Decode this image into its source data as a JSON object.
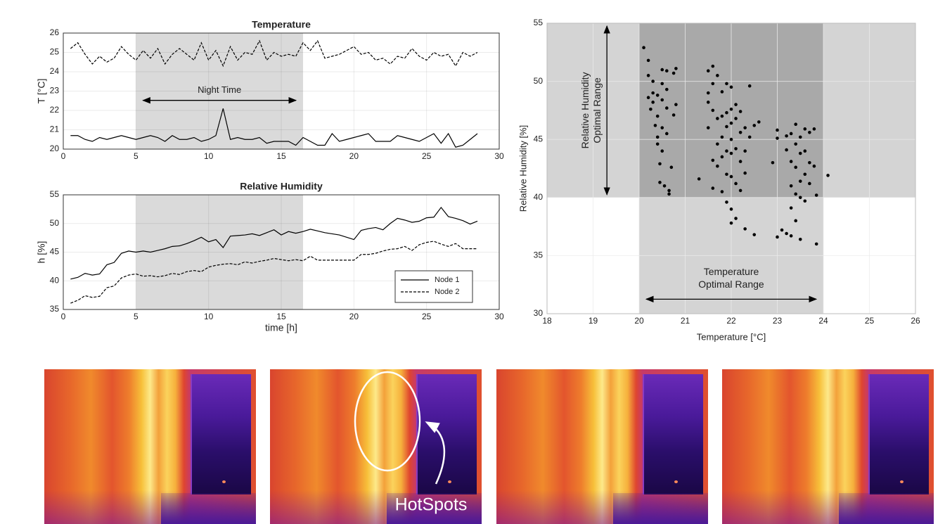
{
  "chart_data": [
    {
      "type": "line",
      "title": "Temperature",
      "ylabel": "T [°C]",
      "annotation": "Night Time",
      "shade": [
        5,
        16.5
      ],
      "shade_color": "#dadada",
      "grid": true,
      "xlim": [
        0,
        30
      ],
      "xticks": [
        0,
        5,
        10,
        15,
        20,
        25,
        30
      ],
      "ylim": [
        20,
        26
      ],
      "yticks": [
        20,
        21,
        22,
        23,
        24,
        25,
        26
      ],
      "x": [
        0.5,
        1,
        1.5,
        2,
        2.5,
        3,
        3.5,
        4,
        4.5,
        5,
        5.5,
        6,
        6.5,
        7,
        7.5,
        8,
        8.5,
        9,
        9.5,
        10,
        10.5,
        11,
        11.5,
        12,
        12.5,
        13,
        13.5,
        14,
        14.5,
        15,
        15.5,
        16,
        16.5,
        17,
        17.5,
        18,
        18.5,
        19,
        19.5,
        20,
        20.5,
        21,
        21.5,
        22,
        22.5,
        23,
        23.5,
        24,
        24.5,
        25,
        25.5,
        26,
        26.5,
        27,
        27.5,
        28,
        28.5
      ],
      "series": [
        {
          "name": "Node 1",
          "color": "#000000",
          "line_style": "solid",
          "values": [
            20.7,
            20.7,
            20.5,
            20.4,
            20.6,
            20.5,
            20.6,
            20.7,
            20.6,
            20.5,
            20.6,
            20.7,
            20.6,
            20.4,
            20.7,
            20.5,
            20.5,
            20.6,
            20.4,
            20.5,
            20.7,
            22.1,
            20.5,
            20.6,
            20.5,
            20.5,
            20.6,
            20.3,
            20.4,
            20.4,
            20.4,
            20.2,
            20.6,
            20.4,
            20.2,
            20.2,
            20.8,
            20.4,
            20.5,
            20.6,
            20.7,
            20.8,
            20.4,
            20.4,
            20.4,
            20.7,
            20.6,
            20.5,
            20.4,
            20.6,
            20.8,
            20.3,
            20.8,
            20.1,
            20.2,
            20.5,
            20.8
          ]
        },
        {
          "name": "Node 2",
          "color": "#000000",
          "line_style": "dashed",
          "values": [
            25.2,
            25.5,
            24.9,
            24.4,
            24.8,
            24.5,
            24.7,
            25.3,
            24.9,
            24.6,
            25.1,
            24.7,
            25.2,
            24.4,
            24.9,
            25.2,
            24.9,
            24.6,
            25.5,
            24.6,
            25.1,
            24.3,
            25.3,
            24.6,
            25.0,
            24.9,
            25.6,
            24.6,
            25.0,
            24.8,
            24.9,
            24.8,
            25.5,
            25.1,
            25.6,
            24.7,
            24.8,
            24.9,
            25.1,
            25.3,
            24.9,
            25.0,
            24.6,
            24.7,
            24.4,
            24.8,
            24.7,
            25.2,
            24.8,
            24.6,
            25.0,
            24.8,
            24.9,
            24.3,
            25.0,
            24.8,
            25.0
          ]
        }
      ]
    },
    {
      "type": "line",
      "title": "Relative Humidity",
      "ylabel": "h [%]",
      "xlabel": "time [h]",
      "shade": [
        5,
        16.5
      ],
      "shade_color": "#dadada",
      "grid": true,
      "legend": "lower right",
      "xlim": [
        0,
        30
      ],
      "xticks": [
        0,
        5,
        10,
        15,
        20,
        25,
        30
      ],
      "ylim": [
        35,
        55
      ],
      "yticks": [
        35,
        40,
        45,
        50,
        55
      ],
      "x": [
        0.5,
        1,
        1.5,
        2,
        2.5,
        3,
        3.5,
        4,
        4.5,
        5,
        5.5,
        6,
        6.5,
        7,
        7.5,
        8,
        8.5,
        9,
        9.5,
        10,
        10.5,
        11,
        11.5,
        12,
        12.5,
        13,
        13.5,
        14,
        14.5,
        15,
        15.5,
        16,
        16.5,
        17,
        17.5,
        18,
        18.5,
        19,
        19.5,
        20,
        20.5,
        21,
        21.5,
        22,
        22.5,
        23,
        23.5,
        24,
        24.5,
        25,
        25.5,
        26,
        26.5,
        27,
        27.5,
        28,
        28.5
      ],
      "series": [
        {
          "name": "Node 1",
          "color": "#000000",
          "line_style": "solid",
          "values": [
            40.3,
            40.6,
            41.3,
            41.0,
            41.2,
            42.8,
            43.2,
            44.8,
            45.2,
            45.0,
            45.2,
            45.0,
            45.3,
            45.6,
            46.0,
            46.1,
            46.5,
            47.0,
            47.6,
            46.8,
            47.2,
            45.8,
            47.8,
            47.9,
            48.0,
            48.2,
            47.9,
            48.4,
            48.9,
            48.0,
            48.6,
            48.3,
            48.6,
            49.0,
            48.7,
            48.4,
            48.2,
            48.0,
            47.6,
            47.2,
            48.8,
            49.1,
            49.3,
            48.9,
            50.0,
            50.9,
            50.6,
            50.2,
            50.4,
            51.0,
            51.1,
            52.8,
            51.2,
            50.9,
            50.5,
            49.9,
            50.4
          ]
        },
        {
          "name": "Node 2",
          "color": "#000000",
          "line_style": "dashed",
          "values": [
            36.1,
            36.6,
            37.4,
            37.1,
            37.3,
            38.8,
            39.1,
            40.5,
            41.0,
            41.2,
            40.8,
            40.9,
            40.7,
            40.9,
            41.3,
            41.1,
            41.6,
            41.8,
            41.6,
            42.4,
            42.7,
            42.9,
            43.0,
            42.8,
            43.3,
            43.1,
            43.4,
            43.6,
            43.9,
            43.7,
            43.5,
            43.7,
            43.5,
            44.3,
            43.6,
            43.6,
            43.6,
            43.6,
            43.6,
            43.6,
            44.6,
            44.6,
            44.8,
            45.2,
            45.5,
            45.6,
            46.0,
            45.3,
            46.3,
            46.7,
            46.9,
            46.4,
            46.0,
            46.5,
            45.6,
            45.6,
            45.6
          ]
        }
      ]
    },
    {
      "type": "scatter",
      "xlabel": "Temperature [°C]",
      "ylabel": "Relative Humidity [%]",
      "grid": true,
      "xlim": [
        18,
        26
      ],
      "xticks": [
        18,
        19,
        20,
        21,
        22,
        23,
        24,
        25,
        26
      ],
      "ylim": [
        30,
        55
      ],
      "yticks": [
        30,
        35,
        40,
        45,
        50,
        55
      ],
      "temp_range": [
        20,
        24
      ],
      "humidity_range": [
        40,
        55
      ],
      "region_color": "#d4d4d4",
      "overlap_color": "#a9a9a9",
      "temp_range_label": [
        "Temperature",
        "Optimal Range"
      ],
      "humidity_range_label": [
        "Relative Humidity",
        "Optimal Range"
      ],
      "color": "#000000",
      "x": [
        20.1,
        20.2,
        20.2,
        20.3,
        20.2,
        20.3,
        20.25,
        20.4,
        20.35,
        20.4,
        20.4,
        20.5,
        20.5,
        20.5,
        20.5,
        20.5,
        20.45,
        20.45,
        20.55,
        20.6,
        20.6,
        20.6,
        20.6,
        20.65,
        20.65,
        20.7,
        20.75,
        20.8,
        20.8,
        20.75,
        20.4,
        20.3,
        21.3,
        21.5,
        21.5,
        21.5,
        21.6,
        21.6,
        21.6,
        21.6,
        21.6,
        21.7,
        21.7,
        21.7,
        21.7,
        21.8,
        21.8,
        21.8,
        21.8,
        21.8,
        21.9,
        21.9,
        21.9,
        21.9,
        21.9,
        21.9,
        22.0,
        22.0,
        22.0,
        22.0,
        22.0,
        22.0,
        22.0,
        22.0,
        22.1,
        22.1,
        22.1,
        22.1,
        22.1,
        22.2,
        22.2,
        22.2,
        22.2,
        22.3,
        22.3,
        22.3,
        22.3,
        22.4,
        22.4,
        22.5,
        22.5,
        22.6,
        21.5,
        22.9,
        23.0,
        23.0,
        23.0,
        23.1,
        23.2,
        23.2,
        23.2,
        23.3,
        23.3,
        23.3,
        23.3,
        23.3,
        23.4,
        23.4,
        23.4,
        23.4,
        23.4,
        23.5,
        23.5,
        23.5,
        23.5,
        23.5,
        23.6,
        23.6,
        23.6,
        23.6,
        23.7,
        23.7,
        23.7,
        23.8,
        23.8,
        23.85,
        23.85,
        24.1
      ],
      "y": [
        52.9,
        51.8,
        50.5,
        49.0,
        48.6,
        48.2,
        47.6,
        47.0,
        46.2,
        45.2,
        44.6,
        51.0,
        49.8,
        48.4,
        46.0,
        44.0,
        42.9,
        41.3,
        41.0,
        50.9,
        49.3,
        47.7,
        45.5,
        40.6,
        40.3,
        42.6,
        50.7,
        51.1,
        48.0,
        47.1,
        48.8,
        50.0,
        41.6,
        50.9,
        49.0,
        48.2,
        51.3,
        49.8,
        47.5,
        43.2,
        40.8,
        50.5,
        46.8,
        44.6,
        42.7,
        49.1,
        47.0,
        45.2,
        43.5,
        40.5,
        49.8,
        47.3,
        46.1,
        44.0,
        42.0,
        39.6,
        49.5,
        47.6,
        46.4,
        45.0,
        43.8,
        41.8,
        39.0,
        37.8,
        48.0,
        46.8,
        44.2,
        41.2,
        38.2,
        47.4,
        45.6,
        43.1,
        40.6,
        46.0,
        44.0,
        42.1,
        37.3,
        49.6,
        45.2,
        46.2,
        36.8,
        46.5,
        46.0,
        43.0,
        45.8,
        45.1,
        36.6,
        37.2,
        45.3,
        44.1,
        36.9,
        45.5,
        43.1,
        41.0,
        39.1,
        36.7,
        46.3,
        44.6,
        42.6,
        40.3,
        38.0,
        45.2,
        43.8,
        41.4,
        40.0,
        36.4,
        45.9,
        44.0,
        42.0,
        39.7,
        45.6,
        43.0,
        41.2,
        45.9,
        42.7,
        40.2,
        36.0,
        41.9
      ]
    }
  ],
  "images": {
    "annotation": "HotSpots"
  }
}
